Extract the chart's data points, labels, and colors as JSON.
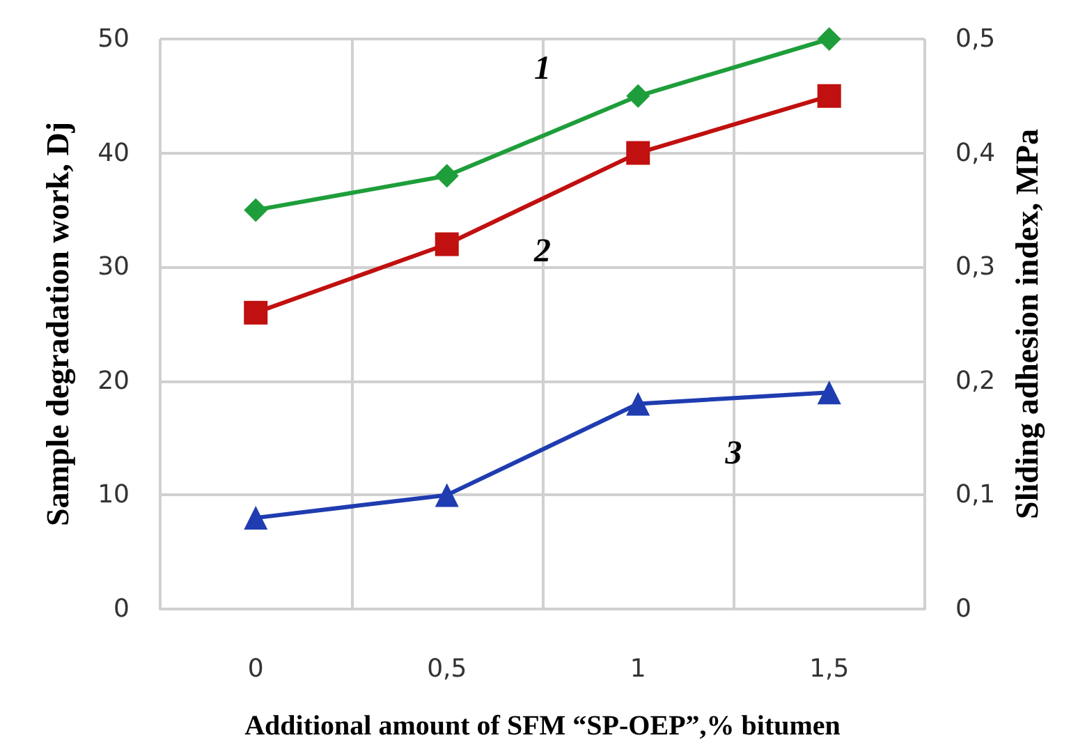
{
  "chart_data": {
    "type": "line",
    "xlabel": "Additional amount of SFM “SP-OEP”,% bitumen",
    "ylabel": "Sample degradation work, Dj",
    "y2label": "Sliding adhesion index, MPa",
    "categories": [
      "0",
      "0,5",
      "1",
      "1,5"
    ],
    "series": [
      {
        "name": "1",
        "color": "#1e9e3a",
        "marker": "diamond",
        "values": [
          35,
          38,
          45,
          50
        ]
      },
      {
        "name": "2",
        "color": "#c0100f",
        "marker": "square",
        "values": [
          26,
          32,
          40,
          45
        ]
      },
      {
        "name": "3",
        "color": "#1f3cb0",
        "marker": "triangle",
        "axis": "y2",
        "values": [
          0.08,
          0.1,
          0.18,
          0.19
        ]
      }
    ],
    "ylim": [
      0,
      50
    ],
    "yticks": [
      0,
      10,
      20,
      30,
      40,
      50
    ],
    "y2lim": [
      0,
      0.5
    ],
    "y2ticks": [
      {
        "value": 0,
        "label": "0"
      },
      {
        "value": 0.1,
        "label": "0,1"
      },
      {
        "value": 0.2,
        "label": "0,2"
      },
      {
        "value": 0.3,
        "label": "0,3"
      },
      {
        "value": 0.4,
        "label": "0,4"
      },
      {
        "value": 0.5,
        "label": "0,5"
      }
    ],
    "grid": true,
    "legend": false
  }
}
